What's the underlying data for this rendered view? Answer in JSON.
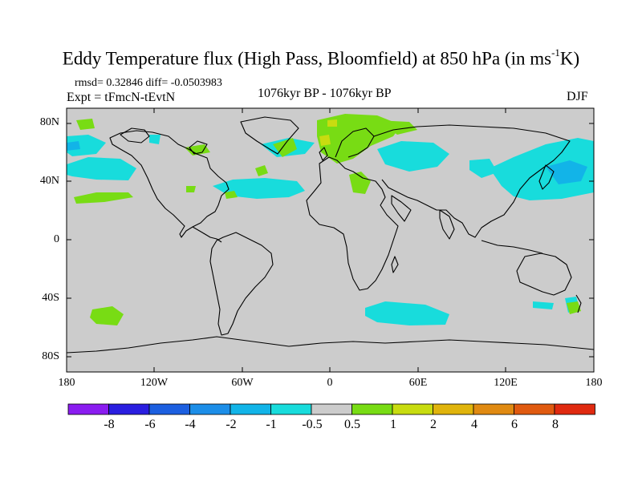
{
  "title": {
    "main": "Eddy Temperature flux (High Pass, Bloomfield) at 850 hPa (in ms",
    "sup": "-1",
    "end": "K)"
  },
  "stats": "rmsd= 0.32846 diff= -0.0503983",
  "experiment": "Expt = tFmcN-tEvtN",
  "period": "1076kyr BP - 1076kyr BP",
  "season": "DJF",
  "axes": {
    "lat_labels": [
      "80N",
      "40N",
      "0",
      "40S",
      "80S"
    ],
    "lon_labels": [
      "180",
      "120W",
      "60W",
      "0",
      "60E",
      "120E",
      "180"
    ]
  },
  "colorbar": {
    "labels": [
      "-8",
      "-6",
      "-4",
      "-2",
      "-1",
      "-0.5",
      "0.5",
      "1",
      "2",
      "4",
      "6",
      "8"
    ],
    "colors": [
      "#8a1cf0",
      "#2a1ee0",
      "#1c5fe0",
      "#1c8ee8",
      "#12b4e8",
      "#18dcdc",
      "#cccccc",
      "#78dc14",
      "#c8dc10",
      "#e0b40c",
      "#e08a12",
      "#e05a10",
      "#e02a10"
    ]
  },
  "palette": {
    "ocean_land": "#cccccc",
    "coast": "#000000"
  }
}
